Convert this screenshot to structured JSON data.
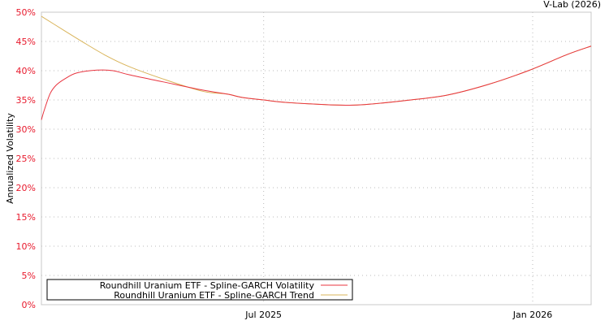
{
  "chart_data": {
    "type": "line",
    "title": "V-Lab (2026)",
    "xlabel": "",
    "ylabel": "Annualized Volatility",
    "x_units": "days relative to 2025-07-01",
    "xlim": [
      -152,
      224
    ],
    "ylim": [
      0,
      50
    ],
    "yticks": [
      0,
      5,
      10,
      15,
      20,
      25,
      30,
      35,
      40,
      45,
      50
    ],
    "ytick_labels": [
      "0%",
      "5%",
      "10%",
      "15%",
      "20%",
      "25%",
      "30%",
      "35%",
      "40%",
      "45%",
      "50%"
    ],
    "xticks": [
      0,
      184
    ],
    "xtick_labels": [
      "Jul 2025",
      "Jan 2026"
    ],
    "grid": true,
    "legend_position": "bottom-left",
    "series": [
      {
        "name": "Roundhill Uranium ETF - Spline-GARCH Volatility",
        "color": "#e8343f",
        "x": [
          -152,
          -150,
          -146,
          -142,
          -136,
          -128,
          -114,
          -103,
          -92,
          -69,
          -42,
          -25,
          -14,
          0,
          14,
          42,
          56,
          69,
          97,
          125,
          153,
          181,
          208,
          224
        ],
        "y": [
          31.6,
          33.3,
          36.1,
          37.5,
          38.6,
          39.6,
          40.1,
          40.0,
          39.3,
          38.1,
          36.7,
          36.0,
          35.4,
          35.0,
          34.6,
          34.2,
          34.1,
          34.2,
          34.9,
          35.8,
          37.6,
          40.0,
          42.8,
          44.2
        ]
      },
      {
        "name": "Roundhill Uranium ETF - Spline-GARCH Trend",
        "color": "#d9b45a",
        "x": [
          -152,
          -136,
          -125,
          -108,
          -92,
          -69,
          -42,
          -25,
          -14,
          0,
          14,
          42,
          56,
          69,
          97,
          125,
          153,
          181,
          208,
          224
        ],
        "y": [
          49.3,
          46.8,
          45.1,
          42.6,
          40.7,
          38.6,
          36.5,
          36.0,
          35.4,
          35.0,
          34.6,
          34.2,
          34.1,
          34.2,
          34.9,
          35.8,
          37.6,
          40.0,
          42.8,
          44.2
        ]
      }
    ]
  }
}
